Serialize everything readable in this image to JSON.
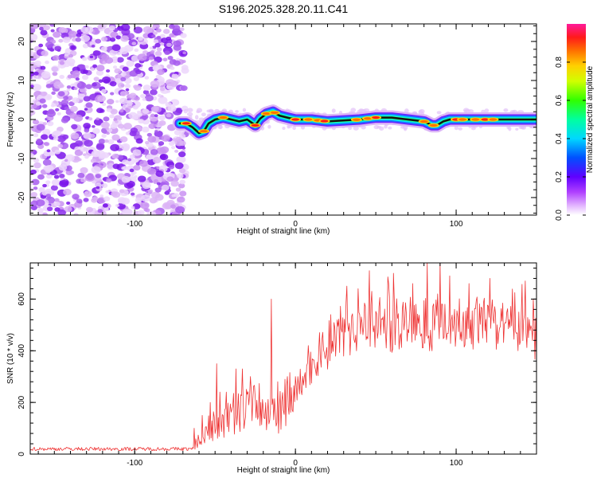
{
  "title": "S196.2025.328.20.11.C41",
  "chart_data": [
    {
      "type": "heatmap",
      "name": "spectrogram",
      "xlabel": "Height of straight line (km)",
      "ylabel": "Frequency (Hz)",
      "xlim": [
        -165,
        150
      ],
      "ylim": [
        -24.5,
        24.5
      ],
      "xticks": [
        -100,
        0,
        100
      ],
      "xtick_labels": [
        "-100",
        "0",
        "100"
      ],
      "yticks": [
        -20,
        -10,
        0,
        10,
        20
      ],
      "ytick_labels": [
        "-20",
        "-10",
        "0",
        "10",
        "20"
      ],
      "noise_region_x": [
        -165,
        -72
      ],
      "signal_start_x": -72,
      "signal_track": {
        "x": [
          -72,
          -68,
          -64,
          -60,
          -57,
          -54,
          -50,
          -45,
          -40,
          -35,
          -30,
          -25,
          -22,
          -18,
          -14,
          -10,
          -5,
          0,
          10,
          20,
          40,
          50,
          60,
          70,
          80,
          85,
          88,
          92,
          96,
          110,
          130,
          150
        ],
        "freq": [
          -1,
          -1,
          -2,
          -3.5,
          -3,
          -1,
          0,
          0.5,
          0,
          -0.5,
          0,
          -1.5,
          0.2,
          1.5,
          2,
          1,
          0.5,
          0,
          0,
          -0.5,
          0,
          0.5,
          0.5,
          0,
          -0.5,
          -1.5,
          -1.5,
          -0.5,
          0,
          0,
          0,
          0
        ]
      },
      "colorbar": {
        "label": "Normalized spectral amplitude",
        "range": [
          0,
          1
        ],
        "ticks": [
          0.0,
          0.2,
          0.4,
          0.6,
          0.8
        ],
        "tick_labels": [
          "0.0",
          "0.2",
          "0.4",
          "0.6",
          "0.8"
        ]
      }
    },
    {
      "type": "line",
      "name": "snr",
      "xlabel": "Height of straight line (km)",
      "ylabel": "SNR (10 * v/v)",
      "xlim": [
        -165,
        150
      ],
      "ylim": [
        0,
        740
      ],
      "xticks": [
        -100,
        0,
        100
      ],
      "xtick_labels": [
        "-100",
        "0",
        "100"
      ],
      "yticks": [
        0,
        200,
        400,
        600
      ],
      "ytick_labels": [
        "0",
        "200",
        "400",
        "600"
      ],
      "color": "#ee3333",
      "baseline": {
        "x": [
          -165,
          -62
        ],
        "value": 20
      },
      "trend": {
        "x": [
          -62,
          -55,
          -50,
          -45,
          -40,
          -35,
          -30,
          -25,
          -20,
          -15,
          -10,
          -5,
          0,
          5,
          10,
          15,
          20,
          25,
          30,
          40,
          50,
          60,
          70,
          80,
          90,
          100,
          110,
          120,
          130,
          140,
          150
        ],
        "y": [
          40,
          90,
          120,
          110,
          150,
          170,
          180,
          200,
          170,
          160,
          180,
          210,
          250,
          290,
          340,
          380,
          420,
          450,
          480,
          500,
          510,
          500,
          510,
          500,
          520,
          510,
          500,
          500,
          490,
          480,
          470
        ]
      },
      "peaks": [
        {
          "x": -63,
          "y": 100
        },
        {
          "x": -58,
          "y": 150
        },
        {
          "x": -53,
          "y": 200
        },
        {
          "x": -49,
          "y": 350
        },
        {
          "x": -47,
          "y": 240
        },
        {
          "x": -43,
          "y": 240
        },
        {
          "x": -37,
          "y": 330
        },
        {
          "x": -33,
          "y": 330
        },
        {
          "x": -28,
          "y": 300
        },
        {
          "x": -15,
          "y": 600
        },
        {
          "x": -11,
          "y": 280
        },
        {
          "x": -5,
          "y": 300
        },
        {
          "x": 8,
          "y": 420
        },
        {
          "x": 15,
          "y": 470
        },
        {
          "x": 22,
          "y": 540
        },
        {
          "x": 32,
          "y": 650
        },
        {
          "x": 39,
          "y": 640
        },
        {
          "x": 46,
          "y": 710
        },
        {
          "x": 58,
          "y": 660
        },
        {
          "x": 61,
          "y": 700
        },
        {
          "x": 73,
          "y": 660
        },
        {
          "x": 82,
          "y": 740
        },
        {
          "x": 90,
          "y": 740
        },
        {
          "x": 96,
          "y": 690
        },
        {
          "x": 108,
          "y": 660
        },
        {
          "x": 121,
          "y": 680
        },
        {
          "x": 143,
          "y": 670
        },
        {
          "x": 148,
          "y": 600
        }
      ]
    }
  ]
}
